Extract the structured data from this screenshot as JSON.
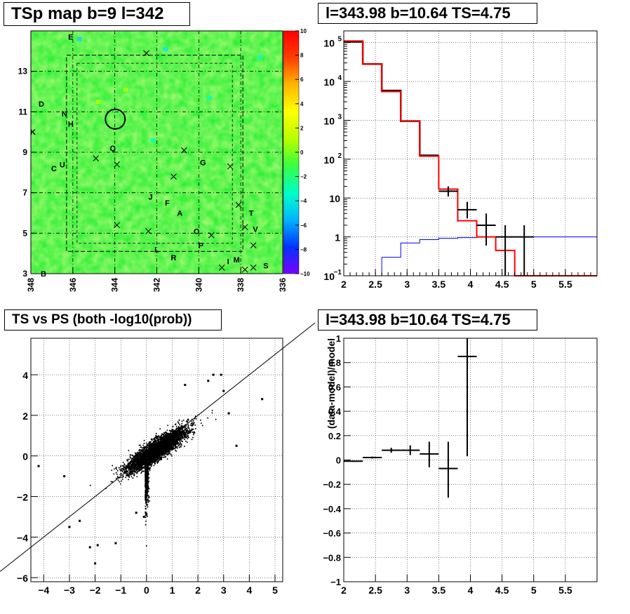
{
  "panels": {
    "map": {
      "title": "TSp map b=9 l=342"
    },
    "spectrum": {
      "title": "l=343.98 b=10.64 TS=4.75"
    },
    "scatter": {
      "title": "TS vs PS (both -log10(prob))"
    },
    "residual": {
      "title": "l=343.98 b=10.64 TS=4.75"
    }
  },
  "chart_data": [
    {
      "type": "heatmap",
      "title": "TSp map b=9 l=342",
      "x_range": [
        348,
        336
      ],
      "x_reversed": true,
      "y_range": [
        3,
        15
      ],
      "x_ticks": [
        "348",
        "346",
        "344",
        "342",
        "340",
        "338",
        "336"
      ],
      "y_ticks": [
        "3",
        "5",
        "7",
        "9",
        "11",
        "13"
      ],
      "z_range": [
        -10,
        10
      ],
      "z_ticks": [
        "10",
        "8",
        "6",
        "4",
        "2",
        "0",
        "−2",
        "−4",
        "−6",
        "−8",
        "−10"
      ],
      "dominant_value": 0,
      "colormap": [
        "#7a00ff",
        "#0033ff",
        "#00b3ff",
        "#00ffcc",
        "#3cff3c",
        "#b4ff00",
        "#ffff00",
        "#ffb400",
        "#ff3c00",
        "#ff0000"
      ],
      "labels": [
        {
          "text": "E",
          "l": 346.1,
          "b": 14.7
        },
        {
          "text": "D",
          "l": 347.5,
          "b": 11.4
        },
        {
          "text": "N",
          "l": 346.4,
          "b": 10.9
        },
        {
          "text": "H",
          "l": 346.1,
          "b": 10.4
        },
        {
          "text": "K",
          "l": 347.9,
          "b": 10.0
        },
        {
          "text": "Q",
          "l": 344.1,
          "b": 9.2
        },
        {
          "text": "U",
          "l": 346.5,
          "b": 8.4
        },
        {
          "text": "C",
          "l": 346.9,
          "b": 8.2
        },
        {
          "text": "G",
          "l": 339.8,
          "b": 8.5
        },
        {
          "text": "J",
          "l": 342.3,
          "b": 6.8
        },
        {
          "text": "F",
          "l": 341.5,
          "b": 6.5
        },
        {
          "text": "A",
          "l": 340.9,
          "b": 6.0
        },
        {
          "text": "T",
          "l": 337.5,
          "b": 6.0
        },
        {
          "text": "O",
          "l": 340.1,
          "b": 5.1
        },
        {
          "text": "V",
          "l": 337.3,
          "b": 5.2
        },
        {
          "text": "P",
          "l": 339.9,
          "b": 4.4
        },
        {
          "text": "L",
          "l": 342.0,
          "b": 4.2
        },
        {
          "text": "R",
          "l": 341.2,
          "b": 3.8
        },
        {
          "text": "M",
          "l": 338.2,
          "b": 3.7
        },
        {
          "text": "I",
          "l": 338.6,
          "b": 3.6
        },
        {
          "text": "S",
          "l": 336.8,
          "b": 3.4
        },
        {
          "text": "B",
          "l": 347.4,
          "b": 3.0
        }
      ],
      "crosses": [
        [
          342.5,
          13.9
        ],
        [
          340.7,
          9.1
        ],
        [
          344.9,
          8.7
        ],
        [
          343.9,
          8.4
        ],
        [
          341.2,
          7.8
        ],
        [
          338.5,
          8.3
        ],
        [
          338.1,
          6.4
        ],
        [
          343.9,
          5.4
        ],
        [
          342.4,
          5.1
        ],
        [
          339.4,
          4.9
        ],
        [
          337.8,
          5.3
        ],
        [
          337.4,
          4.4
        ],
        [
          338.9,
          3.3
        ],
        [
          337.8,
          3.2
        ],
        [
          337.4,
          3.3
        ]
      ],
      "circle": {
        "l": 343.98,
        "b": 10.64
      }
    },
    {
      "type": "line",
      "title": "l=343.98 b=10.64 TS=4.75",
      "x_range": [
        2,
        6
      ],
      "y_range": [
        0.1,
        200000
      ],
      "y_scale": "log",
      "x_ticks": [
        "2",
        "2.5",
        "3",
        "3.5",
        "4",
        "4.5",
        "5",
        "5.5"
      ],
      "y_ticks": [
        "10^-1",
        "1",
        "10",
        "10^2",
        "10^3",
        "10^4",
        "10^5"
      ],
      "grid": true,
      "series": [
        {
          "color": "#ff0000",
          "edges": [
            2.0,
            2.3,
            2.6,
            2.9,
            3.2,
            3.5,
            3.8,
            4.1,
            4.4,
            4.7,
            6.0
          ],
          "values": [
            110000,
            28000,
            5500,
            950,
            120,
            17,
            2.6,
            1.0,
            0.45,
            0.1
          ]
        },
        {
          "color": "#0000ff",
          "edges": [
            2.6,
            2.9,
            3.2,
            3.5,
            3.8,
            4.1,
            4.4,
            4.7,
            5.0,
            6.0
          ],
          "values": [
            0.3,
            0.7,
            0.85,
            0.92,
            0.96,
            0.99,
            1.0,
            1.0,
            1.0
          ]
        },
        {
          "color": "#000000",
          "edges": [
            2.0,
            2.3,
            2.6,
            2.9,
            3.2,
            3.5
          ],
          "values": [
            105000,
            28000,
            5800,
            950,
            125
          ]
        }
      ],
      "points": [
        {
          "x": 3.65,
          "y": 15,
          "xerr": 0.15,
          "ylo": 11,
          "yhi": 20
        },
        {
          "x": 3.95,
          "y": 5,
          "xerr": 0.15,
          "ylo": 3,
          "yhi": 8
        },
        {
          "x": 4.25,
          "y": 2,
          "xerr": 0.15,
          "ylo": 0.6,
          "yhi": 4
        },
        {
          "x": 4.55,
          "y": 1,
          "xerr": 0.15,
          "ylo": 0.1,
          "yhi": 2
        },
        {
          "x": 4.85,
          "y": 1,
          "xerr": 0.15,
          "ylo": 0.1,
          "yhi": 2
        }
      ]
    },
    {
      "type": "scatter",
      "title": "TS vs PS (both -log10(prob))",
      "x_range": [
        -4.5,
        5.3
      ],
      "y_range": [
        -6.2,
        5.8
      ],
      "x_ticks": [
        "−4",
        "−3",
        "−2",
        "−1",
        "0",
        "1",
        "2",
        "3",
        "4",
        "5"
      ],
      "y_ticks": [
        "−6",
        "−4",
        "−2",
        "0",
        "2",
        "4"
      ],
      "grid": true,
      "reference_line": {
        "slope": 1,
        "intercept": 0
      },
      "n_points": 5000,
      "core_center": [
        0.4,
        0.3
      ],
      "notable_points": [
        [
          -4.2,
          -0.5
        ],
        [
          -3.2,
          -1.0
        ],
        [
          -3.0,
          -3.5
        ],
        [
          -2.6,
          -3.2
        ],
        [
          -2.2,
          -4.5
        ],
        [
          -1.9,
          -4.4
        ],
        [
          -2.0,
          -5.3
        ],
        [
          -1.2,
          -4.3
        ],
        [
          -0.4,
          -2.8
        ],
        [
          -0.1,
          -3.0
        ],
        [
          4.5,
          2.8
        ],
        [
          3.5,
          0.5
        ],
        [
          3.2,
          2.1
        ],
        [
          2.6,
          4.0
        ],
        [
          2.4,
          3.7
        ],
        [
          1.5,
          3.5
        ],
        [
          3.0,
          3.2
        ],
        [
          2.9,
          4.0
        ]
      ]
    },
    {
      "type": "line",
      "title": "l=343.98 b=10.64 TS=4.75",
      "ylabel": "(data-model)/model",
      "x_range": [
        2,
        6
      ],
      "y_range": [
        -1,
        1
      ],
      "x_ticks": [
        "2",
        "2.5",
        "3",
        "3.5",
        "4",
        "4.5",
        "5",
        "5.5"
      ],
      "y_ticks": [
        "−1",
        "−0.8",
        "−0.6",
        "−0.4",
        "−0.2",
        "0",
        "0.2",
        "0.4",
        "0.6",
        "0.8",
        "1"
      ],
      "grid": true,
      "points": [
        {
          "x": 2.15,
          "y": -0.01,
          "xerr": 0.15,
          "ylo": -0.015,
          "yhi": -0.005
        },
        {
          "x": 2.45,
          "y": 0.02,
          "xerr": 0.15,
          "ylo": 0.012,
          "yhi": 0.028
        },
        {
          "x": 2.75,
          "y": 0.08,
          "xerr": 0.15,
          "ylo": 0.06,
          "yhi": 0.1
        },
        {
          "x": 3.05,
          "y": 0.08,
          "xerr": 0.15,
          "ylo": 0.04,
          "yhi": 0.12
        },
        {
          "x": 3.35,
          "y": 0.05,
          "xerr": 0.15,
          "ylo": -0.06,
          "yhi": 0.15
        },
        {
          "x": 3.65,
          "y": -0.07,
          "xerr": 0.15,
          "ylo": -0.31,
          "yhi": 0.15
        },
        {
          "x": 3.95,
          "y": 0.85,
          "xerr": 0.15,
          "ylo": 0.03,
          "yhi": 1.0
        }
      ]
    }
  ]
}
